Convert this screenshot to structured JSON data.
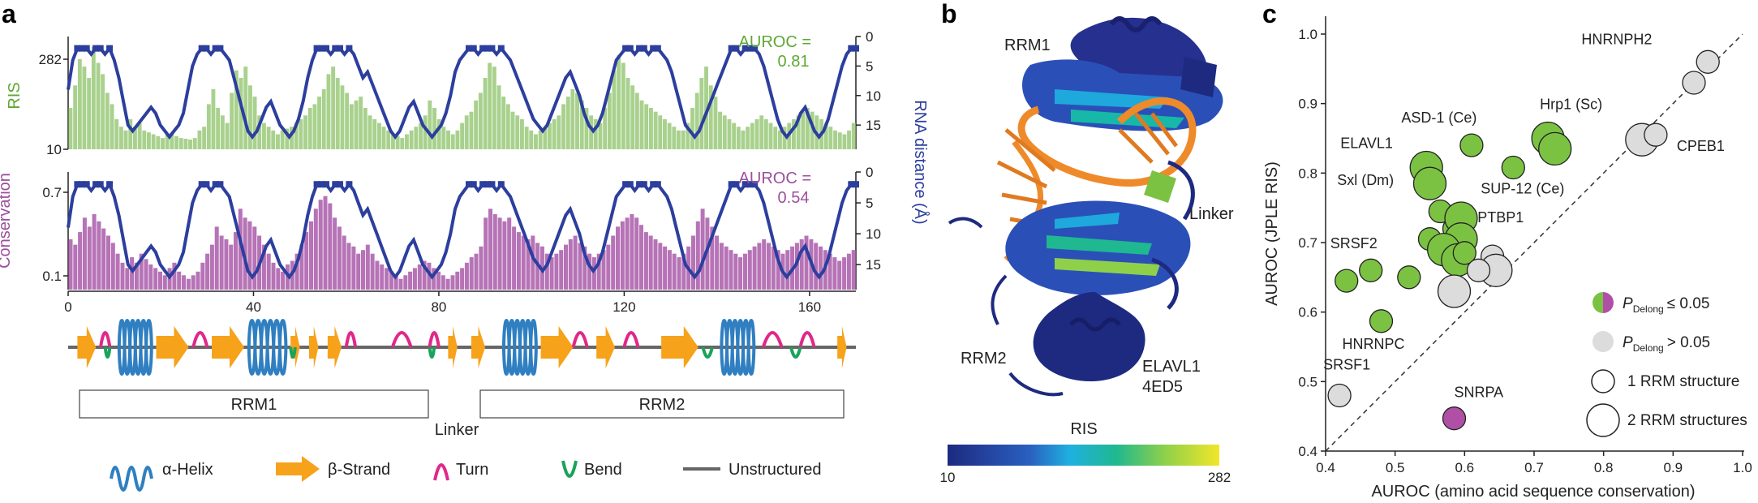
{
  "panel_a": {
    "letter": "a",
    "ris_ylabel": "RIS",
    "cons_ylabel": "Conservation",
    "dist_ylabel": "RNA distance (Å)",
    "ris_auroc_line1": "AUROC =",
    "ris_auroc_line2": "0.81",
    "cons_auroc_line1": "AUROC =",
    "cons_auroc_line2": "0.54",
    "domain_labels": [
      "RRM1",
      "RRM2"
    ],
    "linker_label": "Linker",
    "legend": [
      "α-Helix",
      "β-Strand",
      "Turn",
      "Bend",
      "Unstructured"
    ]
  },
  "panel_b": {
    "letter": "b",
    "labels": {
      "rrm1": "RRM1",
      "rrm2": "RRM2",
      "linker": "Linker",
      "protein": "ELAVL1",
      "pdb": "4ED5"
    },
    "colorbar_title": "RIS",
    "colorbar_min": "10",
    "colorbar_max": "282"
  },
  "panel_c": {
    "letter": "c",
    "legend": {
      "sig_prefix": "P",
      "sig_sub": "Delong",
      "sig_text": "≤ 0.05",
      "ns_prefix": "P",
      "ns_sub": "Delong",
      "ns_text": "> 0.05",
      "one_rrm": "1 RRM structure",
      "two_rrm": "2 RRM structures"
    }
  },
  "colors": {
    "ris_green": "#a9d18e",
    "ris_text_green": "#5ea832",
    "cons_purple": "#b673b6",
    "cons_text_purple": "#9c4f9c",
    "dist_blue": "#2c3e9e",
    "helix_blue": "#2f7fc1",
    "strand_orange": "#f7a21b",
    "turn_magenta": "#e0288a",
    "bend_green": "#1aa35a",
    "sig_green": "#7cc242",
    "ns_grey": "#dcdcdc",
    "snrpa_purple": "#b04fa6"
  },
  "chart_data": [
    {
      "type": "bar",
      "name": "RIS track",
      "ylabel": "RIS",
      "y_ticks": [
        10,
        282
      ],
      "ylim": [
        10,
        282
      ],
      "x_ticks": [
        0,
        40,
        80,
        120,
        160
      ],
      "xlim": [
        0,
        170
      ],
      "ris_values": [
        120,
        180,
        250,
        230,
        200,
        282,
        240,
        210,
        160,
        130,
        90,
        70,
        60,
        90,
        70,
        80,
        60,
        55,
        50,
        45,
        40,
        50,
        55,
        45,
        40,
        38,
        36,
        40,
        60,
        70,
        130,
        170,
        120,
        100,
        80,
        160,
        220,
        200,
        230,
        180,
        150,
        100,
        80,
        70,
        60,
        50,
        60,
        65,
        70,
        80,
        90,
        100,
        120,
        130,
        150,
        170,
        210,
        230,
        200,
        180,
        160,
        130,
        140,
        150,
        120,
        100,
        90,
        80,
        70,
        60,
        50,
        45,
        40,
        50,
        60,
        70,
        80,
        100,
        140,
        120,
        90,
        70,
        60,
        50,
        60,
        80,
        100,
        110,
        140,
        160,
        200,
        240,
        230,
        180,
        150,
        130,
        110,
        100,
        90,
        70,
        60,
        50,
        60,
        70,
        80,
        90,
        100,
        130,
        150,
        170,
        160,
        140,
        120,
        100,
        90,
        80,
        120,
        160,
        220,
        260,
        240,
        200,
        180,
        160,
        140,
        130,
        120,
        110,
        100,
        90,
        80,
        70,
        60,
        60,
        80,
        120,
        160,
        200,
        230,
        180,
        150,
        110,
        100,
        90,
        80,
        70,
        60,
        70,
        80,
        90,
        100,
        90,
        80,
        70,
        60,
        70,
        80,
        90,
        100,
        110,
        120,
        110,
        100,
        90,
        80,
        70,
        60,
        55,
        50,
        60,
        80
      ],
      "rna_distance_ylabel": "RNA distance (Å)",
      "rna_distance_ticks": [
        0,
        5,
        10,
        15
      ],
      "rna_distance_ylim": [
        0,
        18
      ],
      "rna_distance": [
        9,
        4,
        2,
        2,
        2,
        3,
        2,
        2,
        3,
        2,
        4,
        7,
        11,
        15,
        16,
        15,
        14,
        13,
        12,
        13,
        15,
        16,
        17,
        16,
        15,
        13,
        9,
        5,
        3,
        2,
        2,
        3,
        2,
        2,
        3,
        4,
        7,
        10,
        13,
        16,
        17,
        16,
        14,
        12,
        11,
        13,
        15,
        16,
        17,
        16,
        14,
        11,
        7,
        4,
        2,
        2,
        2,
        3,
        2,
        2,
        3,
        2,
        3,
        5,
        7,
        6,
        8,
        10,
        12,
        14,
        16,
        17,
        16,
        14,
        12,
        11,
        13,
        15,
        16,
        17,
        16,
        15,
        13,
        10,
        6,
        4,
        3,
        2,
        2,
        3,
        2,
        2,
        2,
        3,
        2,
        3,
        4,
        6,
        8,
        10,
        12,
        14,
        15,
        16,
        15,
        13,
        11,
        9,
        7,
        6,
        8,
        10,
        13,
        15,
        16,
        15,
        13,
        10,
        7,
        4,
        3,
        2,
        2,
        3,
        2,
        2,
        3,
        2,
        2,
        3,
        4,
        6,
        9,
        12,
        15,
        16,
        17,
        16,
        14,
        12,
        10,
        8,
        6,
        4,
        2,
        2,
        3,
        2,
        2,
        2,
        3,
        5,
        8,
        11,
        14,
        16,
        17,
        16,
        15,
        13,
        12,
        14,
        16,
        17,
        16,
        14,
        11,
        8,
        5,
        3,
        2,
        2
      ],
      "text": {
        "auroc": "AUROC = 0.81"
      }
    },
    {
      "type": "bar",
      "name": "Conservation track",
      "ylabel": "Conservation",
      "y_ticks": [
        0.1,
        0.7
      ],
      "ylim": [
        0.1,
        0.7
      ],
      "xlim": [
        0,
        170
      ],
      "conservation_values": [
        0.38,
        0.35,
        0.42,
        0.5,
        0.45,
        0.52,
        0.48,
        0.44,
        0.4,
        0.36,
        0.3,
        0.25,
        0.22,
        0.28,
        0.25,
        0.3,
        0.27,
        0.24,
        0.22,
        0.2,
        0.18,
        0.22,
        0.25,
        0.2,
        0.18,
        0.16,
        0.18,
        0.2,
        0.25,
        0.3,
        0.35,
        0.45,
        0.4,
        0.38,
        0.35,
        0.42,
        0.55,
        0.5,
        0.48,
        0.45,
        0.4,
        0.35,
        0.3,
        0.25,
        0.22,
        0.2,
        0.24,
        0.26,
        0.3,
        0.35,
        0.42,
        0.48,
        0.55,
        0.6,
        0.62,
        0.58,
        0.5,
        0.45,
        0.4,
        0.36,
        0.34,
        0.3,
        0.32,
        0.35,
        0.3,
        0.26,
        0.24,
        0.22,
        0.2,
        0.18,
        0.16,
        0.18,
        0.2,
        0.22,
        0.24,
        0.26,
        0.25,
        0.22,
        0.2,
        0.18,
        0.16,
        0.18,
        0.2,
        0.22,
        0.25,
        0.28,
        0.3,
        0.34,
        0.5,
        0.55,
        0.52,
        0.5,
        0.48,
        0.5,
        0.45,
        0.42,
        0.4,
        0.38,
        0.4,
        0.36,
        0.34,
        0.3,
        0.28,
        0.3,
        0.32,
        0.35,
        0.38,
        0.4,
        0.36,
        0.34,
        0.3,
        0.28,
        0.3,
        0.32,
        0.35,
        0.4,
        0.45,
        0.48,
        0.5,
        0.52,
        0.5,
        0.46,
        0.42,
        0.4,
        0.38,
        0.36,
        0.34,
        0.32,
        0.3,
        0.28,
        0.3,
        0.34,
        0.4,
        0.48,
        0.55,
        0.5,
        0.45,
        0.4,
        0.36,
        0.34,
        0.32,
        0.3,
        0.28,
        0.3,
        0.32,
        0.34,
        0.36,
        0.38,
        0.36,
        0.34,
        0.32,
        0.3,
        0.32,
        0.34,
        0.36,
        0.38,
        0.4,
        0.38,
        0.36,
        0.34,
        0.32,
        0.3,
        0.28,
        0.26,
        0.28,
        0.3,
        0.32
      ],
      "text": {
        "auroc": "AUROC = 0.54"
      }
    },
    {
      "type": "scatter",
      "name": "AUROC comparison",
      "xlabel": "AUROC (amino acid sequence conservation)",
      "ylabel": "AUROC (JPLE RIS)",
      "xlim": [
        0.4,
        1.0
      ],
      "ylim": [
        0.4,
        1.0
      ],
      "x_ticks": [
        0.4,
        0.5,
        0.6,
        0.7,
        0.8,
        0.9,
        1.0
      ],
      "y_ticks": [
        0.4,
        0.5,
        0.6,
        0.7,
        0.8,
        0.9,
        1.0
      ],
      "diagonal": true,
      "points": [
        {
          "x": 0.95,
          "y": 0.96,
          "sig": false,
          "rrm": 1
        },
        {
          "x": 0.93,
          "y": 0.93,
          "sig": false,
          "rrm": 1
        },
        {
          "x": 0.855,
          "y": 0.848,
          "sig": false,
          "rrm": 2
        },
        {
          "x": 0.875,
          "y": 0.855,
          "sig": false,
          "rrm": 1
        },
        {
          "x": 0.72,
          "y": 0.85,
          "sig": true,
          "rrm": 2
        },
        {
          "x": 0.73,
          "y": 0.835,
          "sig": true,
          "rrm": 2
        },
        {
          "x": 0.61,
          "y": 0.84,
          "sig": true,
          "rrm": 1
        },
        {
          "x": 0.67,
          "y": 0.808,
          "sig": true,
          "rrm": 1
        },
        {
          "x": 0.545,
          "y": 0.808,
          "sig": true,
          "rrm": 2
        },
        {
          "x": 0.55,
          "y": 0.785,
          "sig": true,
          "rrm": 2
        },
        {
          "x": 0.565,
          "y": 0.745,
          "sig": true,
          "rrm": 1
        },
        {
          "x": 0.585,
          "y": 0.72,
          "sig": true,
          "rrm": 1
        },
        {
          "x": 0.595,
          "y": 0.735,
          "sig": true,
          "rrm": 2
        },
        {
          "x": 0.595,
          "y": 0.705,
          "sig": true,
          "rrm": 2
        },
        {
          "x": 0.55,
          "y": 0.705,
          "sig": true,
          "rrm": 1
        },
        {
          "x": 0.57,
          "y": 0.69,
          "sig": true,
          "rrm": 2
        },
        {
          "x": 0.59,
          "y": 0.675,
          "sig": true,
          "rrm": 2
        },
        {
          "x": 0.6,
          "y": 0.685,
          "sig": true,
          "rrm": 1
        },
        {
          "x": 0.64,
          "y": 0.68,
          "sig": false,
          "rrm": 1
        },
        {
          "x": 0.645,
          "y": 0.66,
          "sig": false,
          "rrm": 2
        },
        {
          "x": 0.62,
          "y": 0.66,
          "sig": false,
          "rrm": 1
        },
        {
          "x": 0.585,
          "y": 0.63,
          "sig": false,
          "rrm": 2
        },
        {
          "x": 0.465,
          "y": 0.66,
          "sig": true,
          "rrm": 1
        },
        {
          "x": 0.43,
          "y": 0.645,
          "sig": true,
          "rrm": 1
        },
        {
          "x": 0.52,
          "y": 0.65,
          "sig": true,
          "rrm": 1
        },
        {
          "x": 0.48,
          "y": 0.587,
          "sig": true,
          "rrm": 1
        },
        {
          "x": 0.42,
          "y": 0.48,
          "sig": false,
          "rrm": 1
        },
        {
          "x": 0.585,
          "y": 0.447,
          "sig": "purple",
          "rrm": 1
        }
      ],
      "point_labels": [
        {
          "text": "HNRNPH2",
          "x": 0.955,
          "y": 0.96
        },
        {
          "text": "CPEB1",
          "x": 0.875,
          "y": 0.855
        },
        {
          "text": "Hrp1 (Sc)",
          "x": 0.72,
          "y": 0.85
        },
        {
          "text": "ASD-1 (Ce)",
          "x": 0.61,
          "y": 0.84
        },
        {
          "text": "ELAVL1",
          "x": 0.545,
          "y": 0.808
        },
        {
          "text": "SUP-12 (Ce)",
          "x": 0.67,
          "y": 0.808
        },
        {
          "text": "Sxl (Dm)",
          "x": 0.545,
          "y": 0.785
        },
        {
          "text": "PTBP1",
          "x": 0.6,
          "y": 0.685
        },
        {
          "text": "SRSF2",
          "x": 0.43,
          "y": 0.645
        },
        {
          "text": "HNRNPC",
          "x": 0.48,
          "y": 0.587
        },
        {
          "text": "SRSF1",
          "x": 0.42,
          "y": 0.48
        },
        {
          "text": "SNRPA",
          "x": 0.585,
          "y": 0.447
        }
      ]
    }
  ]
}
